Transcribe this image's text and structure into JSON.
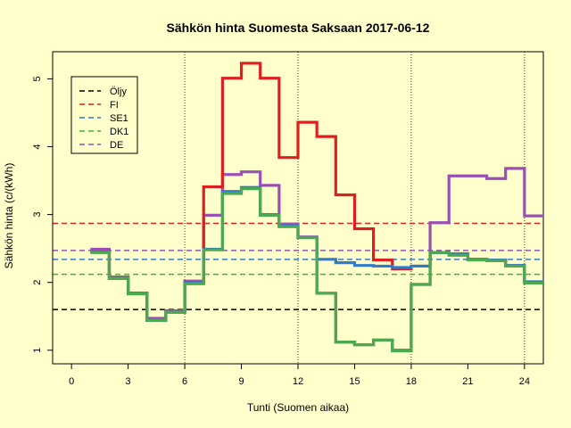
{
  "chart_data": {
    "type": "line",
    "title": "Sähkön hinta Suomesta Saksaan 2017-06-12",
    "xlabel": "Tunti (Suomen aikaa)",
    "ylabel": "Sähkön hinta (c/(kWh)",
    "xlim": [
      -1,
      25
    ],
    "ylim": [
      0.8,
      5.4
    ],
    "x_ticks": [
      0,
      3,
      6,
      9,
      12,
      15,
      18,
      21,
      24
    ],
    "y_ticks": [
      1,
      2,
      3,
      4,
      5
    ],
    "vlines": [
      6,
      12,
      18,
      24
    ],
    "legend_position": "top-left",
    "series": [
      {
        "name": "Öljy",
        "color": "#000000",
        "style": "dashed",
        "kind": "hline",
        "value": 1.6
      },
      {
        "name": "FI",
        "color": "#DF1F1F",
        "style": "dashed",
        "kind": "hline",
        "value": 2.87
      },
      {
        "name": "SE1",
        "color": "#2E7BCF",
        "style": "dashed",
        "kind": "hline",
        "value": 2.34
      },
      {
        "name": "DK1",
        "color": "#39B53B",
        "style": "dashed",
        "kind": "hline",
        "value": 2.12
      },
      {
        "name": "DE",
        "color": "#9B4FB5",
        "style": "dashed",
        "kind": "hline",
        "value": 2.47
      }
    ],
    "step_series": [
      {
        "name": "DE",
        "color": "#9B4FB5",
        "hours": [
          1,
          2,
          3,
          4,
          5,
          6,
          7,
          8,
          9,
          10,
          11,
          12,
          13,
          14,
          15,
          16,
          17,
          18,
          19,
          20,
          21,
          22,
          23,
          24,
          25
        ],
        "values": [
          2.49,
          2.08,
          1.84,
          1.47,
          1.58,
          2.02,
          2.99,
          3.59,
          3.63,
          3.43,
          2.86,
          2.67,
          1.84,
          1.12,
          1.08,
          1.15,
          1.0,
          1.97,
          2.88,
          3.57,
          3.57,
          3.53,
          3.68,
          2.98,
          2.98
        ]
      },
      {
        "name": "FI",
        "color": "#DF1F1F",
        "hours": [
          1,
          2,
          3,
          4,
          5,
          6,
          7,
          8,
          9,
          10,
          11,
          12,
          13,
          14,
          15,
          16,
          17,
          18,
          19,
          20,
          21,
          22,
          23,
          24,
          25
        ],
        "values": [
          2.45,
          2.06,
          1.84,
          1.44,
          1.56,
          2.0,
          3.41,
          5.01,
          5.23,
          5.01,
          3.84,
          4.36,
          4.15,
          3.29,
          2.79,
          2.33,
          2.2,
          2.24,
          2.44,
          2.42,
          2.34,
          2.33,
          2.25,
          2.0,
          2.0
        ]
      },
      {
        "name": "SE1",
        "color": "#2E7BCF",
        "hours": [
          1,
          2,
          3,
          4,
          5,
          6,
          7,
          8,
          9,
          10,
          11,
          12,
          13,
          14,
          15,
          16,
          17,
          18,
          19,
          20,
          21,
          22,
          23,
          24,
          25
        ],
        "values": [
          2.45,
          2.06,
          1.84,
          1.44,
          1.56,
          2.0,
          2.49,
          3.34,
          3.4,
          3.0,
          2.84,
          2.66,
          2.34,
          2.29,
          2.25,
          2.24,
          2.22,
          2.24,
          2.44,
          2.42,
          2.34,
          2.33,
          2.25,
          2.01,
          2.01
        ]
      },
      {
        "name": "DK1",
        "color": "#4CA94E",
        "hours": [
          1,
          2,
          3,
          4,
          5,
          6,
          7,
          8,
          9,
          10,
          11,
          12,
          13,
          14,
          15,
          16,
          17,
          18,
          19,
          20,
          21,
          22,
          23,
          24,
          25
        ],
        "values": [
          2.44,
          2.06,
          1.83,
          1.44,
          1.56,
          1.98,
          2.48,
          3.31,
          3.38,
          2.99,
          2.82,
          2.66,
          1.84,
          1.12,
          1.08,
          1.15,
          0.99,
          1.97,
          2.44,
          2.4,
          2.33,
          2.32,
          2.24,
          1.99,
          1.99
        ]
      }
    ]
  }
}
